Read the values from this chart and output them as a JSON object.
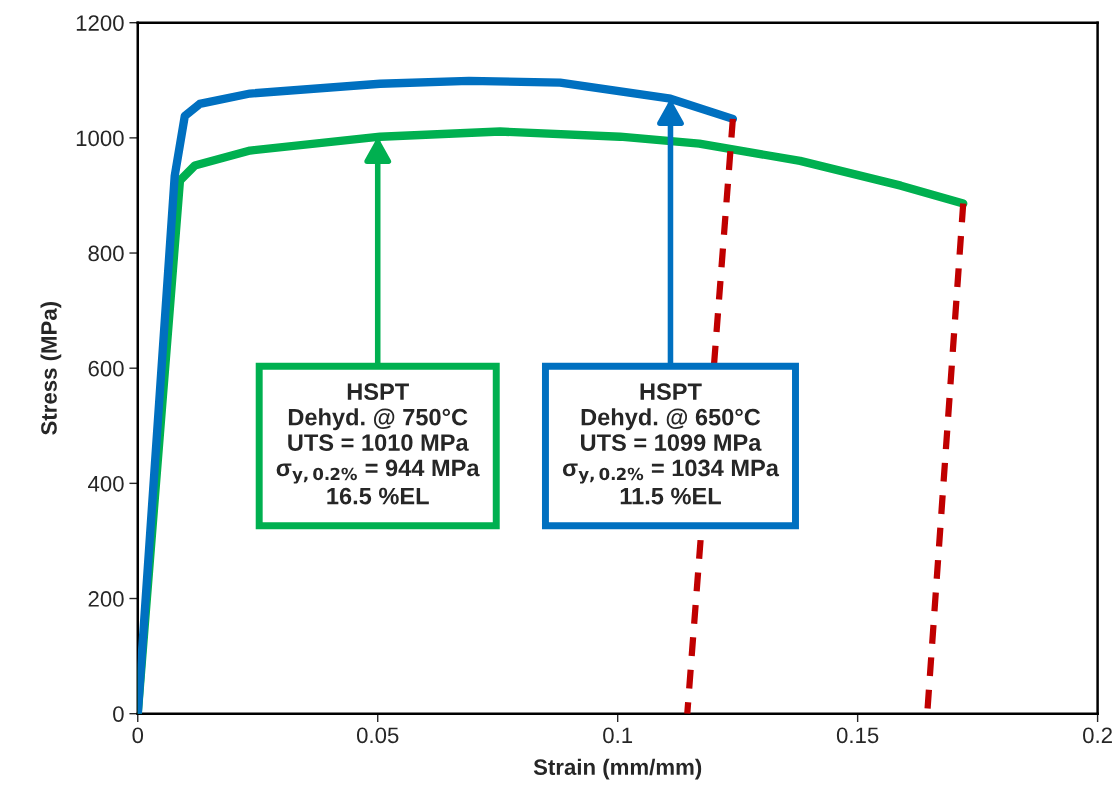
{
  "chart_data": {
    "type": "line",
    "xlabel": "Strain (mm/mm)",
    "ylabel": "Stress (MPa)",
    "xlim": [
      0,
      0.2
    ],
    "ylim": [
      0,
      1200
    ],
    "xticks": [
      0,
      0.05,
      0.1,
      0.15,
      0.2
    ],
    "yticks": [
      0,
      200,
      400,
      600,
      800,
      1000,
      1200
    ],
    "grid": false,
    "legend": false,
    "line_style": "solid",
    "series": [
      {
        "color": "#00b050",
        "x": [
          0,
          0.0088,
          0.0119,
          0.0234,
          0.0505,
          0.0755,
          0.1005,
          0.117,
          0.138,
          0.159,
          0.172
        ],
        "values": [
          0,
          926,
          952,
          978,
          1002,
          1011,
          1002,
          990,
          960,
          917,
          886
        ]
      },
      {
        "color": "#0070c0",
        "x": [
          0,
          0.0077,
          0.0098,
          0.0129,
          0.0234,
          0.0505,
          0.069,
          0.088,
          0.111,
          0.124
        ],
        "values": [
          0,
          934,
          1038,
          1059,
          1077,
          1094,
          1099,
          1096,
          1068,
          1033
        ]
      },
      {
        "color": "#c00000",
        "line_style": "dashed",
        "x": [
          0.124,
          0.1145
        ],
        "values": [
          1033,
          0
        ]
      },
      {
        "color": "#c00000",
        "line_style": "dashed",
        "x": [
          0.172,
          0.1645
        ],
        "values": [
          886,
          0
        ]
      }
    ],
    "annotations": [
      {
        "text": "HSPT\nDehyd. @ 750°C\nUTS = 1010 MPa\nσ$_{y,0.2%}$ = 944 MPa\n16.5 %EL",
        "x": 0.05,
        "y": 1002
      },
      {
        "text": "HSPT\nDehyd. @ 650°C\nUTS = 1099 MPa\nσ$_{y,0.2%}$ = 1034 MPa\n11.5 %EL",
        "x": 0.111,
        "y": 1068
      }
    ]
  }
}
